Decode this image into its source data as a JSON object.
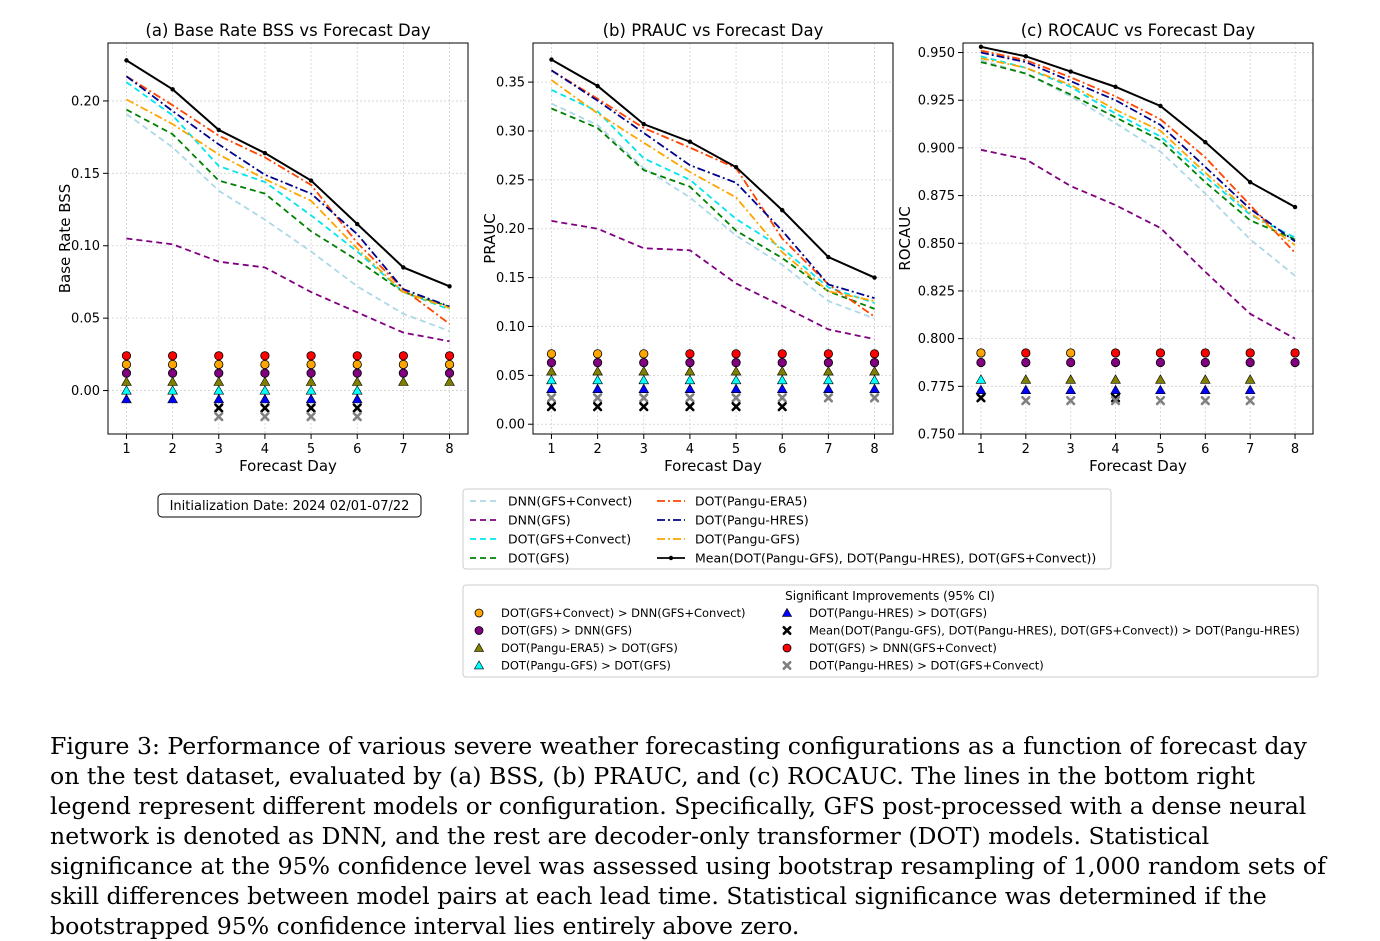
{
  "caption": "Figure 3: Performance of various severe weather forecasting configurations as a function of forecast day on the test dataset, evaluated by (a) BSS, (b) PRAUC, and (c) ROCAUC. The lines in the bottom right legend represent different models or configuration. Specifically, GFS post-processed with a dense neural network is denoted as DNN, and the rest are decoder-only transformer (DOT) models. Statistical significance at the 95% confidence level was assessed using bootstrap resampling of 1,000 random sets of skill differences between model pairs at each lead time. Statistical significance was determined if the bootstrapped 95% confidence interval lies entirely above zero.",
  "init_date_label": "Initialization Date: 2024 02/01-07/22",
  "significance_title": "Significant Improvements (95% CI)",
  "colors": {
    "dnn_gfs_convect": "#add8e6",
    "dnn_gfs": "#800080",
    "dot_gfs_convect": "#00e5ee",
    "dot_gfs": "#008000",
    "dot_pangu_era5": "#ff4500",
    "dot_pangu_hres": "#00008b",
    "dot_pangu_gfs": "#ffa500",
    "mean": "#000000"
  },
  "series_legend": [
    {
      "key": "dnn_gfs_convect",
      "label": "DNN(GFS+Convect)",
      "dash": "dashed"
    },
    {
      "key": "dnn_gfs",
      "label": "DNN(GFS)",
      "dash": "dashed"
    },
    {
      "key": "dot_gfs_convect",
      "label": "DOT(GFS+Convect)",
      "dash": "dashed"
    },
    {
      "key": "dot_gfs",
      "label": "DOT(GFS)",
      "dash": "dashed"
    },
    {
      "key": "dot_pangu_era5",
      "label": "DOT(Pangu-ERA5)",
      "dash": "dashdot"
    },
    {
      "key": "dot_pangu_hres",
      "label": "DOT(Pangu-HRES)",
      "dash": "dashdot"
    },
    {
      "key": "dot_pangu_gfs",
      "label": "DOT(Pangu-GFS)",
      "dash": "dashdot"
    },
    {
      "key": "mean",
      "label": "Mean(DOT(Pangu-GFS), DOT(Pangu-HRES), DOT(GFS+Convect))",
      "dash": "solid"
    }
  ],
  "significance_legend": [
    {
      "key": "s1",
      "label": "DOT(GFS+Convect) > DNN(GFS+Convect)",
      "marker": "circle",
      "color": "#ffa500"
    },
    {
      "key": "s2",
      "label": "DOT(GFS) > DNN(GFS)",
      "marker": "circle",
      "color": "#800080"
    },
    {
      "key": "s3",
      "label": "DOT(Pangu-ERA5) > DOT(GFS)",
      "marker": "triangle",
      "color": "#808000"
    },
    {
      "key": "s4",
      "label": "DOT(Pangu-GFS) > DOT(GFS)",
      "marker": "triangle",
      "color": "#00ffff"
    },
    {
      "key": "s5",
      "label": "DOT(Pangu-HRES) > DOT(GFS)",
      "marker": "triangle",
      "color": "#0000ff"
    },
    {
      "key": "s6",
      "label": "Mean(DOT(Pangu-GFS), DOT(Pangu-HRES), DOT(GFS+Convect)) > DOT(Pangu-HRES)",
      "marker": "x",
      "color": "#000000"
    },
    {
      "key": "s7",
      "label": "DOT(GFS) > DNN(GFS+Convect)",
      "marker": "circle",
      "color": "#ff0000"
    },
    {
      "key": "s8",
      "label": "DOT(Pangu-HRES) > DOT(GFS+Convect)",
      "marker": "x",
      "color": "#808080"
    }
  ],
  "chart_data": [
    {
      "type": "line",
      "title": "(a) Base Rate BSS vs Forecast Day",
      "xlabel": "Forecast Day",
      "ylabel": "Base Rate BSS",
      "x": [
        1,
        2,
        3,
        4,
        5,
        6,
        7,
        8
      ],
      "xlim": [
        0.6,
        8.4
      ],
      "ylim": [
        -0.03,
        0.24
      ],
      "yticks": [
        0.0,
        0.05,
        0.1,
        0.15,
        0.2
      ],
      "ytick_labels": [
        "0.00",
        "0.05",
        "0.10",
        "0.15",
        "0.20"
      ],
      "grid": true,
      "series": [
        {
          "key": "dnn_gfs_convect",
          "values": [
            0.191,
            0.168,
            0.138,
            0.118,
            0.096,
            0.072,
            0.053,
            0.041
          ]
        },
        {
          "key": "dnn_gfs",
          "values": [
            0.105,
            0.101,
            0.089,
            0.085,
            0.068,
            0.054,
            0.04,
            0.034
          ]
        },
        {
          "key": "dot_gfs_convect",
          "values": [
            0.213,
            0.19,
            0.155,
            0.144,
            0.121,
            0.096,
            0.068,
            0.056
          ]
        },
        {
          "key": "dot_gfs",
          "values": [
            0.194,
            0.177,
            0.145,
            0.136,
            0.11,
            0.09,
            0.068,
            0.058
          ]
        },
        {
          "key": "dot_pangu_era5",
          "values": [
            0.217,
            0.197,
            0.176,
            0.161,
            0.142,
            0.102,
            0.07,
            0.046
          ]
        },
        {
          "key": "dot_pangu_hres",
          "values": [
            0.217,
            0.193,
            0.17,
            0.149,
            0.136,
            0.108,
            0.07,
            0.058
          ]
        },
        {
          "key": "dot_pangu_gfs",
          "values": [
            0.201,
            0.184,
            0.163,
            0.146,
            0.131,
            0.098,
            0.068,
            0.057
          ]
        },
        {
          "key": "mean",
          "values": [
            0.228,
            0.208,
            0.18,
            0.164,
            0.145,
            0.115,
            0.085,
            0.072
          ]
        }
      ],
      "significance": {
        "s7": {
          "y": 0.024,
          "days": [
            1,
            2,
            3,
            4,
            5,
            6,
            7,
            8
          ]
        },
        "s1": {
          "y": 0.018,
          "days": [
            1,
            2,
            3,
            4,
            5,
            6,
            7,
            8
          ]
        },
        "s2": {
          "y": 0.012,
          "days": [
            1,
            2,
            3,
            4,
            5,
            6,
            7,
            8
          ]
        },
        "s3": {
          "y": 0.006,
          "days": [
            1,
            2,
            3,
            4,
            5,
            6,
            7,
            8
          ]
        },
        "s4": {
          "y": 0.0,
          "days": [
            1,
            2,
            3,
            4,
            5,
            6
          ]
        },
        "s5": {
          "y": -0.006,
          "days": [
            1,
            2,
            3,
            4,
            5,
            6
          ]
        },
        "s6": {
          "y": -0.012,
          "days": [
            3,
            4,
            5,
            6
          ]
        },
        "s8": {
          "y": -0.018,
          "days": [
            3,
            4,
            5,
            6
          ]
        }
      }
    },
    {
      "type": "line",
      "title": "(b) PRAUC vs Forecast Day",
      "xlabel": "Forecast Day",
      "ylabel": "PRAUC",
      "x": [
        1,
        2,
        3,
        4,
        5,
        6,
        7,
        8
      ],
      "xlim": [
        0.6,
        8.4
      ],
      "ylim": [
        -0.01,
        0.39
      ],
      "yticks": [
        0.0,
        0.05,
        0.1,
        0.15,
        0.2,
        0.25,
        0.3,
        0.35
      ],
      "ytick_labels": [
        "0.00",
        "0.05",
        "0.10",
        "0.15",
        "0.20",
        "0.25",
        "0.30",
        "0.35"
      ],
      "grid": true,
      "series": [
        {
          "key": "dnn_gfs_convect",
          "values": [
            0.328,
            0.306,
            0.262,
            0.232,
            0.193,
            0.163,
            0.126,
            0.108
          ]
        },
        {
          "key": "dnn_gfs",
          "values": [
            0.208,
            0.2,
            0.18,
            0.178,
            0.144,
            0.121,
            0.097,
            0.087
          ]
        },
        {
          "key": "dot_gfs_convect",
          "values": [
            0.342,
            0.32,
            0.272,
            0.25,
            0.21,
            0.18,
            0.14,
            0.124
          ]
        },
        {
          "key": "dot_gfs",
          "values": [
            0.323,
            0.303,
            0.26,
            0.243,
            0.198,
            0.17,
            0.136,
            0.118
          ]
        },
        {
          "key": "dot_pangu_era5",
          "values": [
            0.362,
            0.333,
            0.303,
            0.283,
            0.262,
            0.19,
            0.143,
            0.11
          ]
        },
        {
          "key": "dot_pangu_hres",
          "values": [
            0.362,
            0.331,
            0.298,
            0.265,
            0.247,
            0.198,
            0.143,
            0.129
          ]
        },
        {
          "key": "dot_pangu_gfs",
          "values": [
            0.352,
            0.318,
            0.288,
            0.258,
            0.232,
            0.176,
            0.136,
            0.126
          ]
        },
        {
          "key": "mean",
          "values": [
            0.373,
            0.346,
            0.307,
            0.289,
            0.263,
            0.219,
            0.171,
            0.15
          ]
        }
      ],
      "significance": {
        "s7": {
          "y": 0.072,
          "days": [
            4,
            5,
            6,
            7,
            8
          ]
        },
        "s1": {
          "y": 0.072,
          "days": [
            1,
            2,
            3
          ]
        },
        "s2": {
          "y": 0.063,
          "days": [
            1,
            2,
            3,
            4,
            5,
            6,
            7,
            8
          ]
        },
        "s3": {
          "y": 0.054,
          "days": [
            1,
            2,
            3,
            4,
            5,
            6,
            7,
            8
          ]
        },
        "s4": {
          "y": 0.045,
          "days": [
            1,
            2,
            3,
            4,
            5,
            6,
            7,
            8
          ]
        },
        "s5": {
          "y": 0.036,
          "days": [
            1,
            2,
            3,
            4,
            5,
            6,
            7,
            8
          ]
        },
        "s8": {
          "y": 0.027,
          "days": [
            1,
            2,
            3,
            4,
            5,
            6,
            7,
            8
          ]
        },
        "s6": {
          "y": 0.018,
          "days": [
            1,
            2,
            3,
            4,
            5,
            6
          ]
        }
      }
    },
    {
      "type": "line",
      "title": "(c) ROCAUC vs Forecast Day",
      "xlabel": "Forecast Day",
      "ylabel": "ROCAUC",
      "x": [
        1,
        2,
        3,
        4,
        5,
        6,
        7,
        8
      ],
      "xlim": [
        0.6,
        8.4
      ],
      "ylim": [
        0.75,
        0.955
      ],
      "yticks": [
        0.75,
        0.775,
        0.8,
        0.825,
        0.85,
        0.875,
        0.9,
        0.925,
        0.95
      ],
      "ytick_labels": [
        "0.750",
        "0.775",
        "0.800",
        "0.825",
        "0.850",
        "0.875",
        "0.900",
        "0.925",
        "0.950"
      ],
      "grid": true,
      "series": [
        {
          "key": "dnn_gfs_convect",
          "values": [
            0.946,
            0.939,
            0.927,
            0.913,
            0.898,
            0.876,
            0.852,
            0.833
          ]
        },
        {
          "key": "dnn_gfs",
          "values": [
            0.899,
            0.894,
            0.88,
            0.87,
            0.858,
            0.835,
            0.813,
            0.8
          ]
        },
        {
          "key": "dot_gfs_convect",
          "values": [
            0.948,
            0.942,
            0.932,
            0.918,
            0.906,
            0.885,
            0.865,
            0.853
          ]
        },
        {
          "key": "dot_gfs",
          "values": [
            0.945,
            0.939,
            0.928,
            0.916,
            0.904,
            0.882,
            0.862,
            0.852
          ]
        },
        {
          "key": "dot_pangu_era5",
          "values": [
            0.951,
            0.946,
            0.937,
            0.927,
            0.915,
            0.895,
            0.87,
            0.845
          ]
        },
        {
          "key": "dot_pangu_hres",
          "values": [
            0.95,
            0.945,
            0.935,
            0.925,
            0.912,
            0.89,
            0.868,
            0.851
          ]
        },
        {
          "key": "dot_pangu_gfs",
          "values": [
            0.947,
            0.942,
            0.933,
            0.92,
            0.909,
            0.887,
            0.866,
            0.849
          ]
        },
        {
          "key": "mean",
          "values": [
            0.953,
            0.948,
            0.94,
            0.932,
            0.922,
            0.903,
            0.882,
            0.869
          ]
        }
      ],
      "significance": {
        "s7": {
          "y": 0.7925,
          "days": [
            2,
            4,
            5,
            6,
            7,
            8
          ]
        },
        "s1": {
          "y": 0.7925,
          "days": [
            1,
            3
          ]
        },
        "s2": {
          "y": 0.7875,
          "days": [
            1,
            2,
            3,
            4,
            5,
            6,
            7,
            8
          ]
        },
        "s3": {
          "y": 0.7785,
          "days": [
            2,
            3,
            4,
            5,
            6,
            7
          ]
        },
        "s4": {
          "y": 0.7785,
          "days": [
            1
          ]
        },
        "s5": {
          "y": 0.773,
          "days": [
            1,
            2,
            3,
            4,
            5,
            6,
            7
          ]
        },
        "s6": {
          "y": 0.769,
          "days": [
            1,
            4
          ]
        },
        "s8": {
          "y": 0.7675,
          "days": [
            2,
            3,
            4,
            5,
            6,
            7
          ]
        }
      }
    }
  ]
}
